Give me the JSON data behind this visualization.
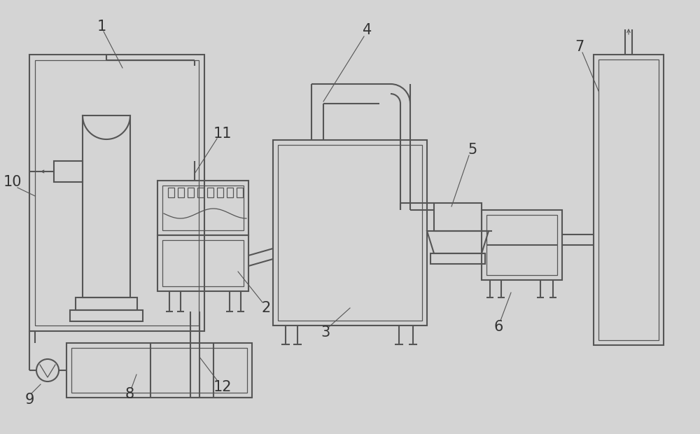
{
  "bg_color": "#d4d4d4",
  "line_color": "#555555",
  "lw": 1.5,
  "tlw": 0.9,
  "label_fs": 15
}
